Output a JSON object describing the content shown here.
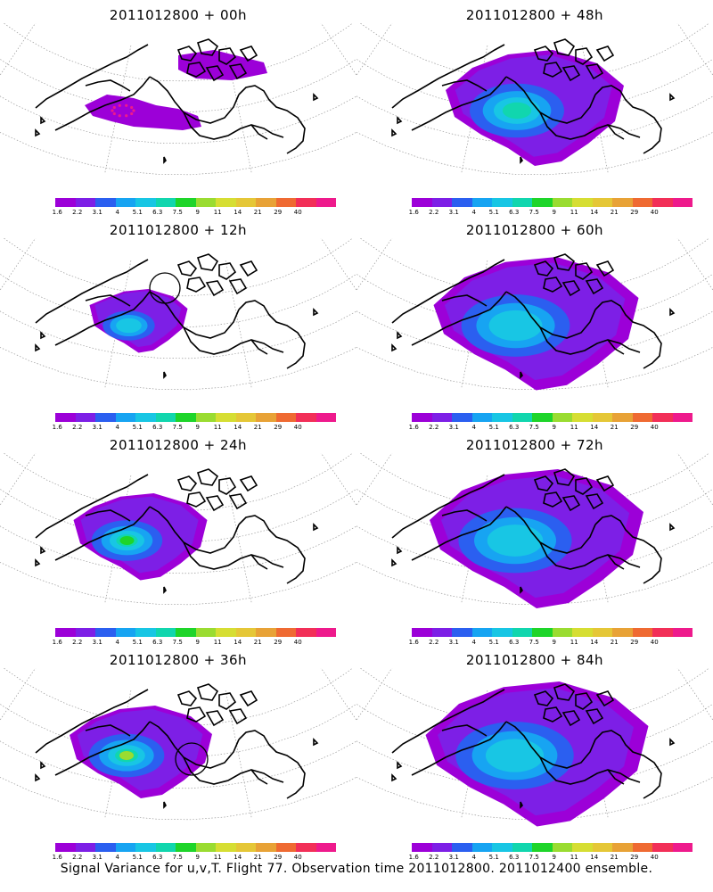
{
  "panels": [
    {
      "title": "2011012800 + 00h"
    },
    {
      "title": "2011012800 + 48h"
    },
    {
      "title": "2011012800 + 12h"
    },
    {
      "title": "2011012800 + 60h"
    },
    {
      "title": "2011012800 + 24h"
    },
    {
      "title": "2011012800 + 72h"
    },
    {
      "title": "2011012800 + 36h"
    },
    {
      "title": "2011012800 + 84h"
    }
  ],
  "colorbar": {
    "colors": [
      "#9c00d8",
      "#7d1fe6",
      "#2b5ff0",
      "#17a4f2",
      "#18c6e4",
      "#11d6ae",
      "#1ed52a",
      "#9adc31",
      "#d6de33",
      "#e5c737",
      "#e8a236",
      "#ef6a32",
      "#f22f58",
      "#ee1a8c"
    ],
    "labels": [
      "1.6",
      "2.2",
      "3.1",
      "4",
      "5.1",
      "6.3",
      "7.5",
      "9",
      "11",
      "14",
      "21",
      "29",
      "40"
    ]
  },
  "caption": "Signal Variance for u,v,T. Flight 77. Observation time 2011012800. 2011012400 ensemble."
}
